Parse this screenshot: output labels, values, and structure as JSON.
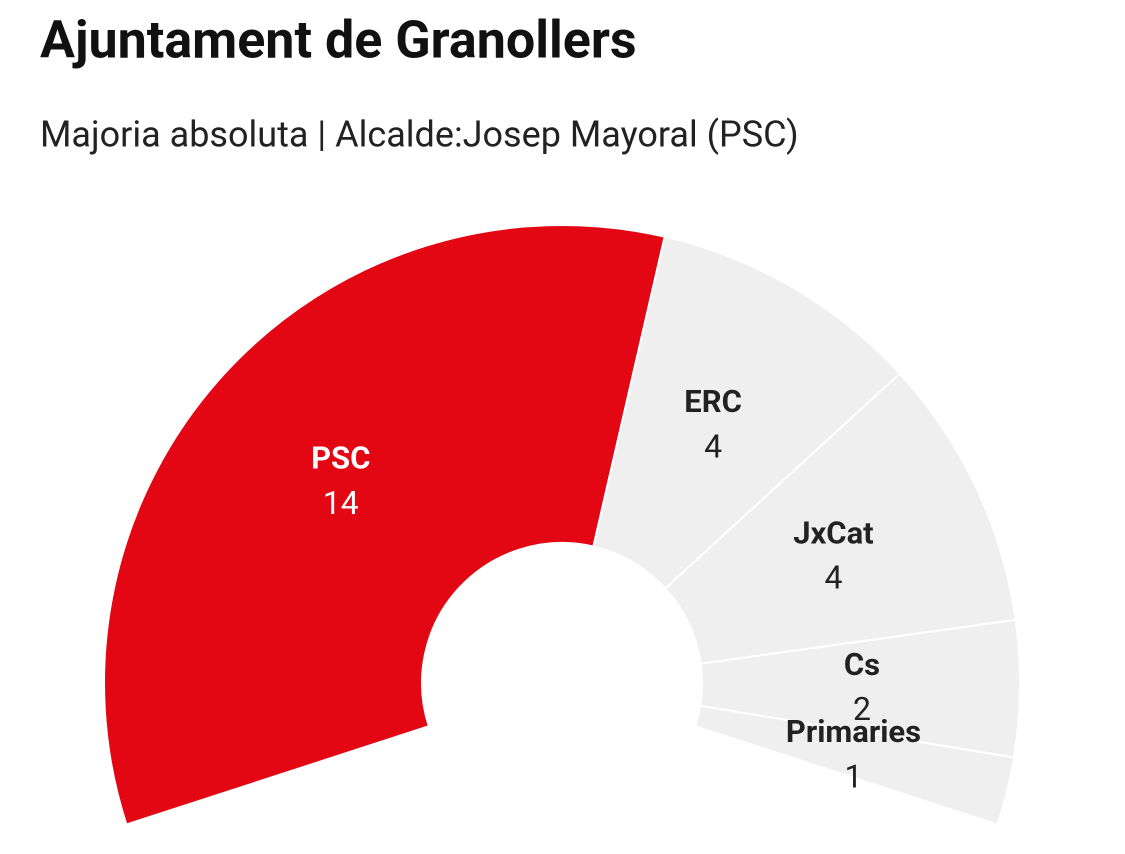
{
  "chart_data": {
    "type": "pie",
    "title": "Ajuntament de Granollers",
    "subtitle": "Majoria absoluta | Alcalde:Josep Mayoral (PSC)",
    "categories": [
      "PSC",
      "ERC",
      "JxCat",
      "Cs",
      "Primaries"
    ],
    "values": [
      14,
      4,
      4,
      2,
      1
    ],
    "colors": [
      "#e30613",
      "#efefef",
      "#efefef",
      "#efefef",
      "#efefef"
    ]
  }
}
